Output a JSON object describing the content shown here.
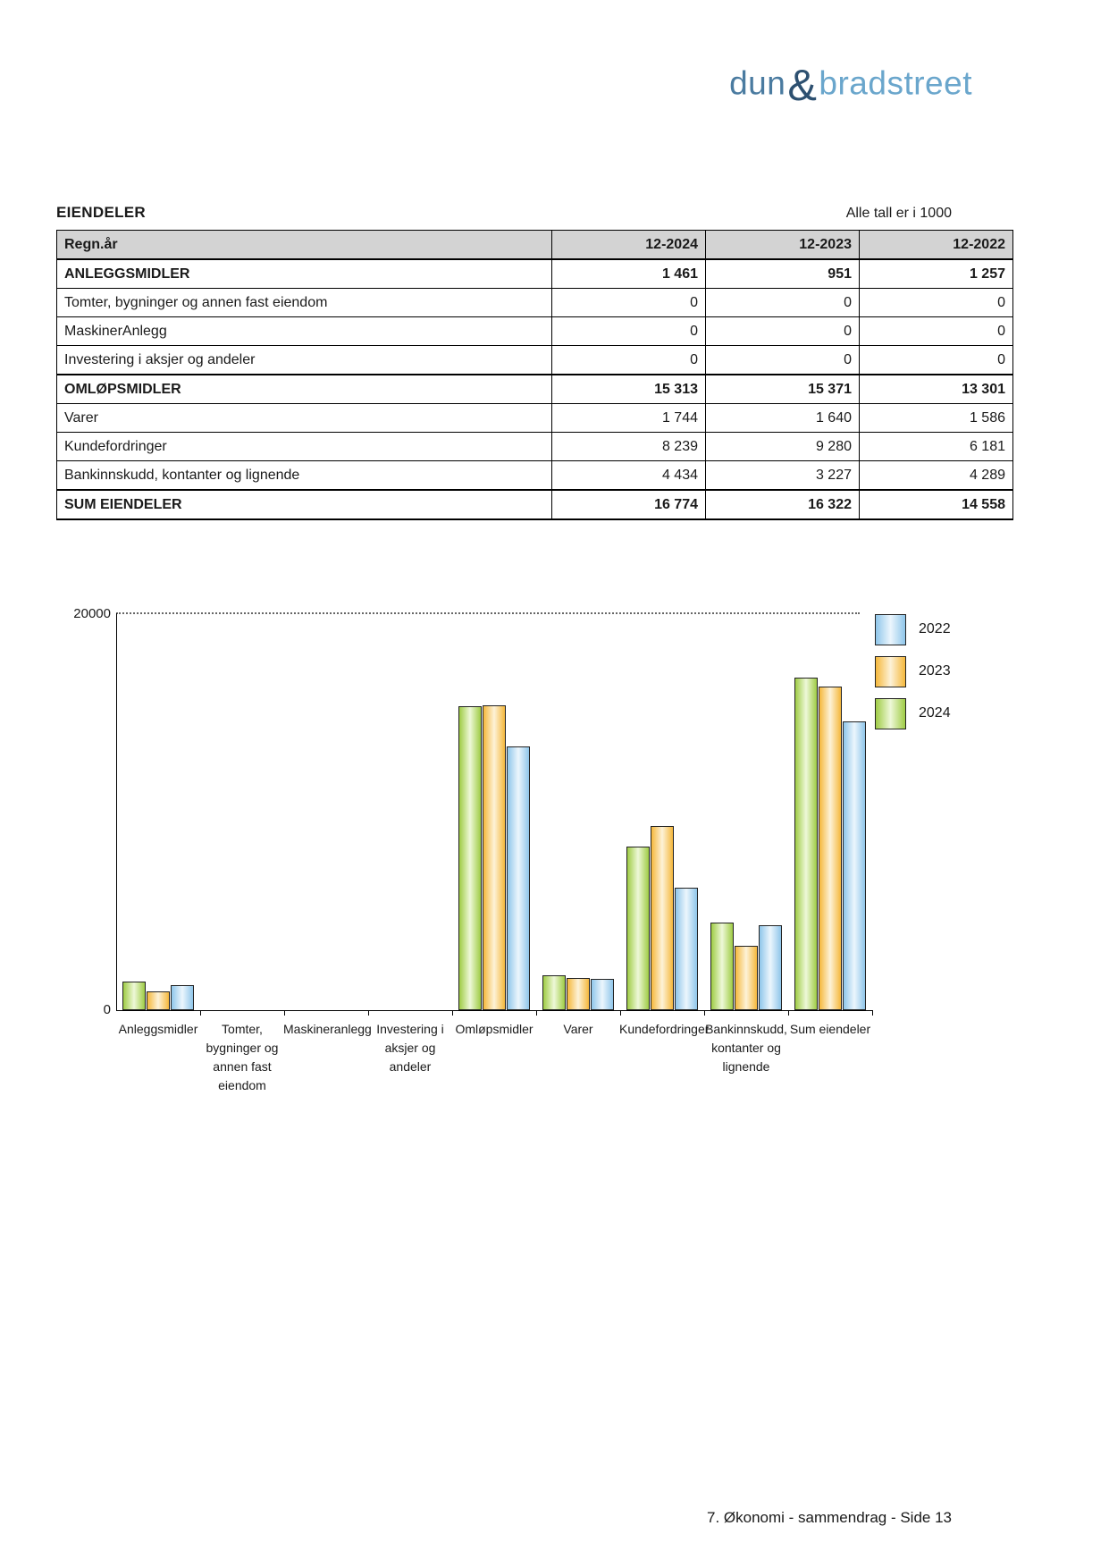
{
  "logo": {
    "dun": "dun",
    "amp": "&",
    "bradstreet": "bradstreet",
    "dun_color": "#4a7ba0",
    "amp_color": "#2d5070",
    "bradstreet_color": "#6aa6cc"
  },
  "header": {
    "title": "EIENDELER",
    "note": "Alle tall er i 1000"
  },
  "table": {
    "columns": [
      "Regn.år",
      "12-2024",
      "12-2023",
      "12-2022"
    ],
    "rows": [
      {
        "label": "ANLEGGSMIDLER",
        "values": [
          "1 461",
          "951",
          "1 257"
        ],
        "bold": true
      },
      {
        "label": "Tomter, bygninger og annen fast eiendom",
        "values": [
          "0",
          "0",
          "0"
        ],
        "bold": false
      },
      {
        "label": "MaskinerAnlegg",
        "values": [
          "0",
          "0",
          "0"
        ],
        "bold": false
      },
      {
        "label": "Investering i aksjer og andeler",
        "values": [
          "0",
          "0",
          "0"
        ],
        "bold": false
      },
      {
        "label": "OMLØPSMIDLER",
        "values": [
          "15 313",
          "15 371",
          "13 301"
        ],
        "bold": true
      },
      {
        "label": "Varer",
        "values": [
          "1 744",
          "1 640",
          "1 586"
        ],
        "bold": false
      },
      {
        "label": "Kundefordringer",
        "values": [
          "8 239",
          "9 280",
          "6 181"
        ],
        "bold": false
      },
      {
        "label": "Bankinnskudd, kontanter og lignende",
        "values": [
          "4 434",
          "3 227",
          "4 289"
        ],
        "bold": false
      },
      {
        "label": "SUM EIENDELER",
        "values": [
          "16 774",
          "16 322",
          "14 558"
        ],
        "bold": true
      }
    ]
  },
  "chart_data": {
    "type": "bar",
    "categories": [
      "Anleggsmidler",
      "Tomter, bygninger og annen fast eiendom",
      "Maskineranlegg",
      "Investering i aksjer og andeler",
      "Omløpsmidler",
      "Varer",
      "Kundefordringer",
      "Bankinnskudd, kontanter og lignende",
      "Sum eiendeler"
    ],
    "series": [
      {
        "name": "2024",
        "edge_color": "#9fcc45",
        "mid_color": "#eef8d8",
        "values": [
          1461,
          0,
          0,
          0,
          15313,
          1744,
          8239,
          4434,
          16774
        ]
      },
      {
        "name": "2023",
        "edge_color": "#f5b83c",
        "mid_color": "#fdf2d8",
        "values": [
          951,
          0,
          0,
          0,
          15371,
          1640,
          9280,
          3227,
          16322
        ]
      },
      {
        "name": "2022",
        "edge_color": "#8fc6ea",
        "mid_color": "#ecf6fd",
        "values": [
          1257,
          0,
          0,
          0,
          13301,
          1586,
          6181,
          4289,
          14558
        ]
      }
    ],
    "ylim": [
      0,
      20000
    ],
    "yticks": [
      "20000",
      "0"
    ],
    "legend": [
      "2022",
      "2023",
      "2024"
    ],
    "legend_position": "top-right",
    "grid": "dotted-top-only"
  },
  "footer": {
    "text": "7. Økonomi - sammendrag - Side 13"
  }
}
